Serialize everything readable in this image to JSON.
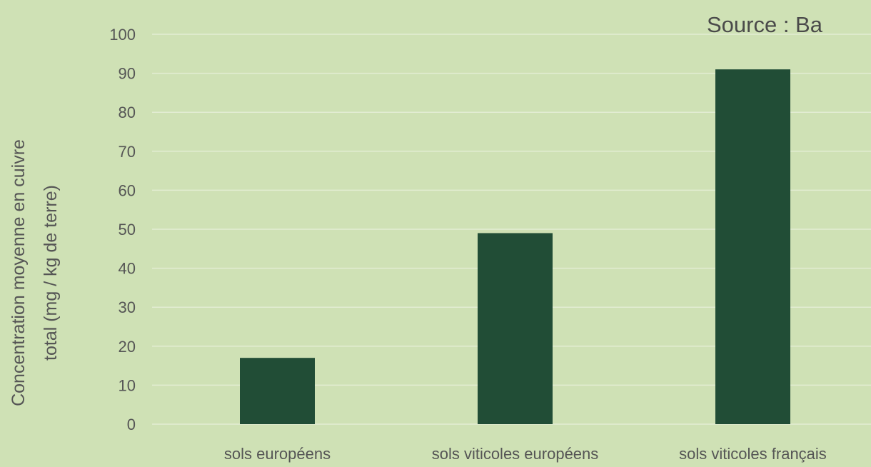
{
  "chart_data": {
    "type": "bar",
    "title": "",
    "source_note": "Source : Ba",
    "categories": [
      "sols européens",
      "sols viticoles européens",
      "sols viticoles français"
    ],
    "values": [
      17,
      49,
      91
    ],
    "xlabel": "",
    "ylabel": [
      "Concentration moyenne en cuivre",
      "total (mg / kg de terre)"
    ],
    "ylim": [
      0,
      100
    ],
    "yticks": [
      0,
      10,
      20,
      30,
      40,
      50,
      60,
      70,
      80,
      90,
      100
    ],
    "grid": true,
    "legend": "none",
    "colors": {
      "background": "#cfe1b5",
      "bar": "#214d36",
      "grid": "#e3edd3",
      "text": "#555555"
    }
  }
}
